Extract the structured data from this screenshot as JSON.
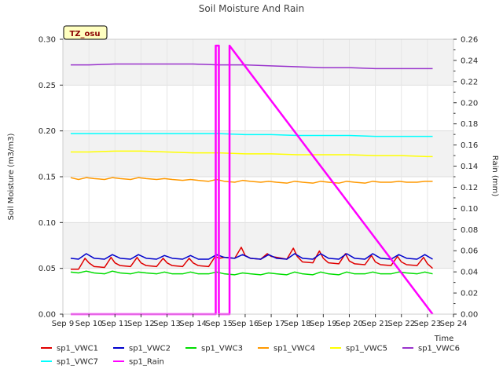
{
  "chart_data": {
    "type": "line",
    "title": "Soil Moisture And Rain",
    "xlabel": "Time",
    "ylabel": "Soil Moisture (m3/m3)",
    "y2label": "Rain (mm)",
    "badge": "TZ_osu",
    "xlim": [
      9,
      24
    ],
    "ylim": [
      0,
      0.3
    ],
    "y2lim": [
      0,
      0.26
    ],
    "x_ticks": [
      {
        "v": 9,
        "label": "Sep 9"
      },
      {
        "v": 10,
        "label": "Sep 10"
      },
      {
        "v": 11,
        "label": "Sep 11"
      },
      {
        "v": 12,
        "label": "Sep 12"
      },
      {
        "v": 13,
        "label": "Sep 13"
      },
      {
        "v": 14,
        "label": "Sep 14"
      },
      {
        "v": 15,
        "label": "Sep 15"
      },
      {
        "v": 16,
        "label": "Sep 16"
      },
      {
        "v": 17,
        "label": "Sep 17"
      },
      {
        "v": 18,
        "label": "Sep 18"
      },
      {
        "v": 19,
        "label": "Sep 19"
      },
      {
        "v": 20,
        "label": "Sep 20"
      },
      {
        "v": 21,
        "label": "Sep 21"
      },
      {
        "v": 22,
        "label": "Sep 22"
      },
      {
        "v": 23,
        "label": "Sep 23"
      },
      {
        "v": 24,
        "label": "Sep 24"
      }
    ],
    "y_ticks": [
      {
        "v": 0.0,
        "label": "0.00"
      },
      {
        "v": 0.05,
        "label": "0.05"
      },
      {
        "v": 0.1,
        "label": "0.10"
      },
      {
        "v": 0.15,
        "label": "0.15"
      },
      {
        "v": 0.2,
        "label": "0.20"
      },
      {
        "v": 0.25,
        "label": "0.25"
      },
      {
        "v": 0.3,
        "label": "0.30"
      }
    ],
    "y2_ticks": [
      {
        "v": 0.0,
        "label": "0.00"
      },
      {
        "v": 0.02,
        "label": "0.02"
      },
      {
        "v": 0.04,
        "label": "0.04"
      },
      {
        "v": 0.06,
        "label": "0.06"
      },
      {
        "v": 0.08,
        "label": "0.08"
      },
      {
        "v": 0.1,
        "label": "0.10"
      },
      {
        "v": 0.12,
        "label": "0.12"
      },
      {
        "v": 0.14,
        "label": "0.14"
      },
      {
        "v": 0.16,
        "label": "0.16"
      },
      {
        "v": 0.18,
        "label": "0.18"
      },
      {
        "v": 0.2,
        "label": "0.20"
      },
      {
        "v": 0.22,
        "label": "0.22"
      },
      {
        "v": 0.24,
        "label": "0.24"
      },
      {
        "v": 0.26,
        "label": "0.26"
      }
    ],
    "series": [
      {
        "name": "sp1_VWC1",
        "color": "#e00000",
        "axis": "left",
        "x": [
          9.3,
          9.6,
          9.85,
          10.0,
          10.2,
          10.6,
          10.85,
          11.0,
          11.2,
          11.6,
          11.85,
          12.0,
          12.2,
          12.6,
          12.85,
          13.0,
          13.2,
          13.6,
          13.85,
          14.0,
          14.2,
          14.6,
          14.85,
          15.0,
          15.2,
          15.6,
          15.85,
          16.0,
          16.2,
          16.6,
          16.85,
          17.0,
          17.2,
          17.6,
          17.85,
          18.0,
          18.2,
          18.6,
          18.85,
          19.0,
          19.2,
          19.6,
          19.85,
          20.0,
          20.2,
          20.6,
          20.85,
          21.0,
          21.2,
          21.6,
          21.85,
          22.0,
          22.2,
          22.6,
          22.85,
          23.0,
          23.2
        ],
        "y": [
          0.049,
          0.049,
          0.061,
          0.056,
          0.052,
          0.051,
          0.062,
          0.056,
          0.053,
          0.052,
          0.062,
          0.056,
          0.053,
          0.052,
          0.061,
          0.056,
          0.053,
          0.052,
          0.061,
          0.056,
          0.053,
          0.052,
          0.063,
          0.061,
          0.062,
          0.061,
          0.073,
          0.064,
          0.061,
          0.06,
          0.066,
          0.063,
          0.062,
          0.06,
          0.072,
          0.063,
          0.057,
          0.056,
          0.069,
          0.061,
          0.056,
          0.055,
          0.066,
          0.058,
          0.055,
          0.054,
          0.064,
          0.057,
          0.054,
          0.053,
          0.063,
          0.057,
          0.054,
          0.053,
          0.062,
          0.055,
          0.05
        ]
      },
      {
        "name": "sp1_VWC2",
        "color": "#0000cc",
        "axis": "left",
        "x": [
          9.3,
          9.6,
          9.9,
          10.2,
          10.6,
          10.9,
          11.2,
          11.6,
          11.9,
          12.2,
          12.6,
          12.9,
          13.2,
          13.6,
          13.9,
          14.2,
          14.6,
          14.9,
          15.2,
          15.6,
          15.9,
          16.2,
          16.6,
          16.9,
          17.2,
          17.6,
          17.9,
          18.2,
          18.6,
          18.9,
          19.2,
          19.6,
          19.9,
          20.2,
          20.6,
          20.9,
          21.2,
          21.6,
          21.9,
          22.2,
          22.6,
          22.9,
          23.2
        ],
        "y": [
          0.061,
          0.06,
          0.066,
          0.061,
          0.06,
          0.065,
          0.061,
          0.06,
          0.065,
          0.061,
          0.06,
          0.064,
          0.061,
          0.06,
          0.064,
          0.06,
          0.06,
          0.065,
          0.062,
          0.061,
          0.065,
          0.061,
          0.06,
          0.065,
          0.061,
          0.06,
          0.066,
          0.061,
          0.06,
          0.066,
          0.061,
          0.06,
          0.066,
          0.061,
          0.06,
          0.066,
          0.061,
          0.06,
          0.065,
          0.061,
          0.06,
          0.065,
          0.06
        ]
      },
      {
        "name": "sp1_VWC3",
        "color": "#00dd00",
        "axis": "left",
        "x": [
          9.3,
          9.6,
          9.9,
          10.2,
          10.6,
          10.9,
          11.2,
          11.6,
          11.9,
          12.2,
          12.6,
          12.9,
          13.2,
          13.6,
          13.9,
          14.2,
          14.6,
          14.9,
          15.2,
          15.6,
          15.9,
          16.2,
          16.6,
          16.9,
          17.2,
          17.6,
          17.9,
          18.2,
          18.6,
          18.9,
          19.2,
          19.6,
          19.9,
          20.2,
          20.6,
          20.9,
          21.2,
          21.6,
          21.9,
          22.2,
          22.6,
          22.9,
          23.2
        ],
        "y": [
          0.046,
          0.045,
          0.047,
          0.045,
          0.044,
          0.047,
          0.045,
          0.044,
          0.046,
          0.045,
          0.044,
          0.046,
          0.044,
          0.044,
          0.046,
          0.044,
          0.044,
          0.046,
          0.044,
          0.043,
          0.045,
          0.044,
          0.043,
          0.045,
          0.044,
          0.043,
          0.046,
          0.044,
          0.043,
          0.046,
          0.044,
          0.043,
          0.046,
          0.044,
          0.044,
          0.046,
          0.044,
          0.044,
          0.046,
          0.045,
          0.044,
          0.046,
          0.044
        ]
      },
      {
        "name": "sp1_VWC4",
        "color": "#ff9900",
        "axis": "left",
        "x": [
          9.3,
          9.6,
          9.9,
          10.2,
          10.6,
          10.9,
          11.2,
          11.6,
          11.9,
          12.2,
          12.6,
          12.9,
          13.2,
          13.6,
          13.9,
          14.2,
          14.6,
          14.9,
          15.2,
          15.6,
          15.9,
          16.2,
          16.6,
          16.9,
          17.2,
          17.6,
          17.9,
          18.2,
          18.6,
          18.9,
          19.2,
          19.6,
          19.9,
          20.2,
          20.6,
          20.9,
          21.2,
          21.6,
          21.9,
          22.2,
          22.6,
          22.9,
          23.2
        ],
        "y": [
          0.149,
          0.147,
          0.149,
          0.148,
          0.147,
          0.149,
          0.148,
          0.147,
          0.149,
          0.148,
          0.147,
          0.148,
          0.147,
          0.146,
          0.147,
          0.146,
          0.145,
          0.147,
          0.145,
          0.144,
          0.146,
          0.145,
          0.144,
          0.145,
          0.144,
          0.143,
          0.145,
          0.144,
          0.143,
          0.145,
          0.144,
          0.143,
          0.145,
          0.144,
          0.143,
          0.145,
          0.144,
          0.144,
          0.145,
          0.144,
          0.144,
          0.145,
          0.145
        ]
      },
      {
        "name": "sp1_VWC5",
        "color": "#ffff00",
        "axis": "left",
        "x": [
          9.3,
          10.0,
          11.0,
          12.0,
          13.0,
          14.0,
          15.0,
          16.0,
          17.0,
          18.0,
          19.0,
          20.0,
          21.0,
          22.0,
          23.0,
          23.2
        ],
        "y": [
          0.177,
          0.177,
          0.178,
          0.178,
          0.177,
          0.176,
          0.176,
          0.175,
          0.175,
          0.174,
          0.174,
          0.174,
          0.173,
          0.173,
          0.172,
          0.172
        ]
      },
      {
        "name": "sp1_VWC6",
        "color": "#9933cc",
        "axis": "left",
        "x": [
          9.3,
          10.0,
          11.0,
          12.0,
          13.0,
          14.0,
          15.0,
          16.0,
          17.0,
          18.0,
          19.0,
          20.0,
          21.0,
          22.0,
          23.0,
          23.2
        ],
        "y": [
          0.272,
          0.272,
          0.273,
          0.273,
          0.273,
          0.273,
          0.272,
          0.272,
          0.271,
          0.27,
          0.269,
          0.269,
          0.268,
          0.268,
          0.268,
          0.268
        ]
      },
      {
        "name": "sp1_VWC7",
        "color": "#00ffff",
        "axis": "left",
        "x": [
          9.3,
          10.0,
          11.0,
          12.0,
          13.0,
          14.0,
          15.0,
          16.0,
          17.0,
          18.0,
          19.0,
          20.0,
          21.0,
          22.0,
          23.0,
          23.2
        ],
        "y": [
          0.197,
          0.197,
          0.197,
          0.197,
          0.197,
          0.197,
          0.197,
          0.196,
          0.196,
          0.195,
          0.195,
          0.195,
          0.194,
          0.194,
          0.194,
          0.194
        ]
      },
      {
        "name": "sp1_Rain",
        "color": "#ff00ff",
        "axis": "right",
        "kind": "rain",
        "x": [
          9.3,
          14.87,
          14.87,
          14.99,
          14.99,
          15.4,
          15.4,
          23.2
        ],
        "y": [
          0,
          0,
          0.254,
          0.254,
          0,
          0,
          0.254,
          0
        ]
      }
    ]
  }
}
